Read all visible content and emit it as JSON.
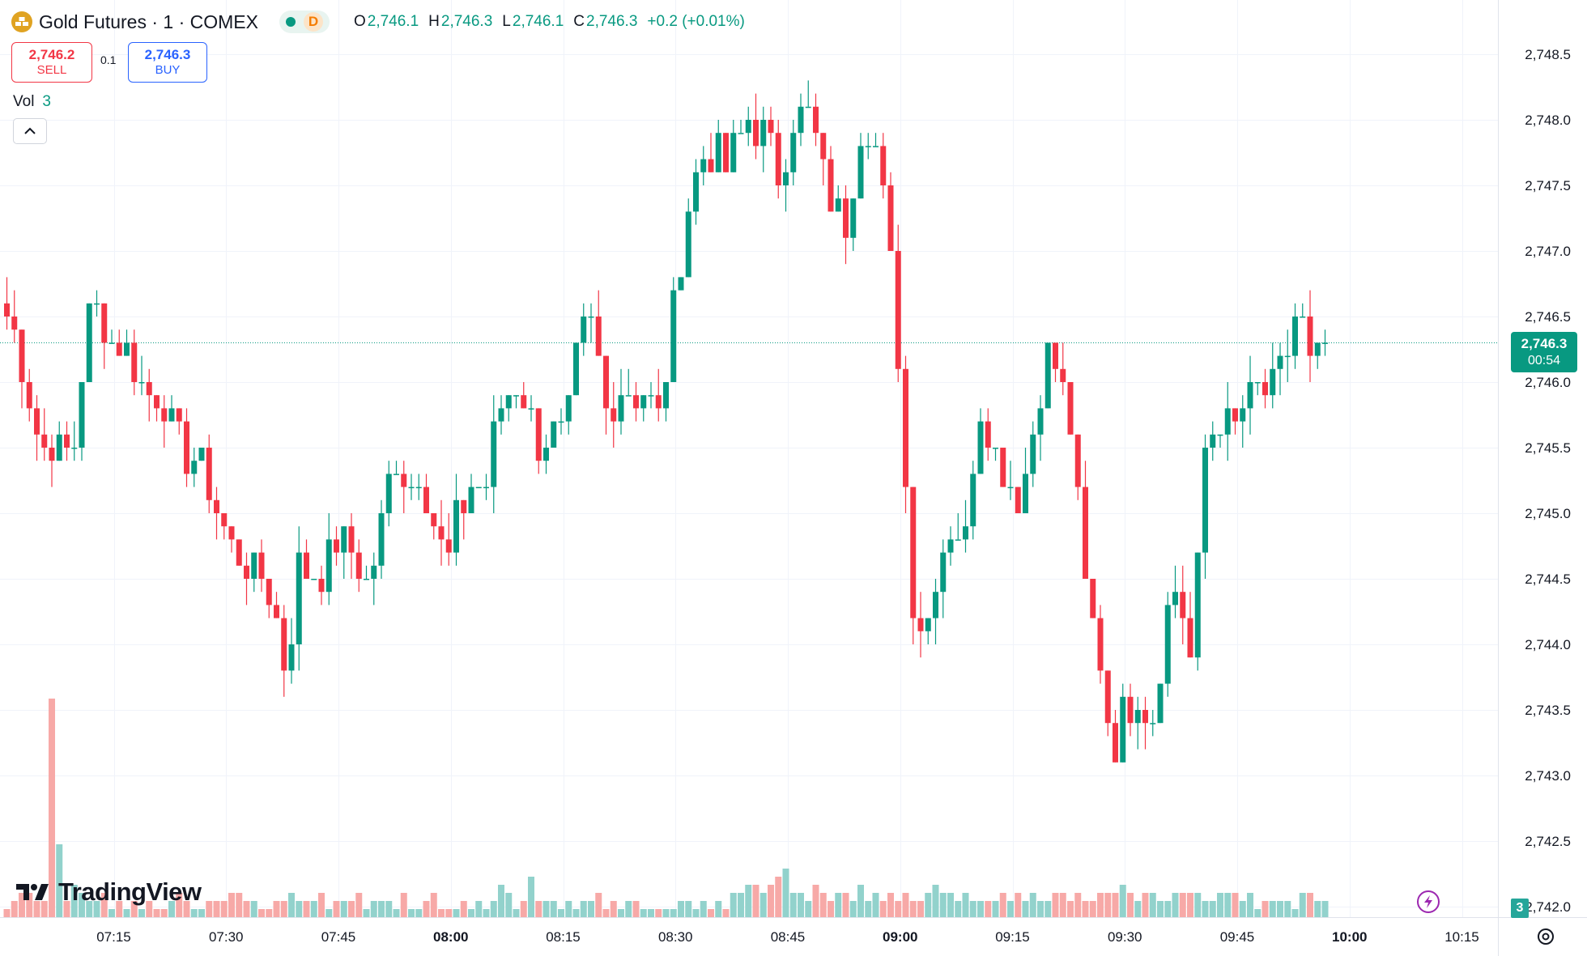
{
  "header": {
    "symbol_title": "Gold Futures · 1 · COMEX",
    "status_letter": "D",
    "ohlc": [
      {
        "label": "O",
        "value": "2,746.1"
      },
      {
        "label": "H",
        "value": "2,746.3"
      },
      {
        "label": "L",
        "value": "2,746.1"
      },
      {
        "label": "C",
        "value": "2,746.3"
      }
    ],
    "change": "+0.2 (+0.01%)"
  },
  "trade": {
    "sell_price": "2,746.2",
    "sell_label": "SELL",
    "spread": "0.1",
    "buy_price": "2,746.3",
    "buy_label": "BUY"
  },
  "volume_legend": {
    "label": "Vol",
    "value": "3"
  },
  "logo_text": "TradingView",
  "last_price": {
    "value": "2,746.3",
    "countdown": "00:54"
  },
  "last_volume": "3",
  "colors": {
    "up": "#089981",
    "down": "#f23645",
    "vol_up": "#92d2cc",
    "vol_down": "#f7a9a7"
  },
  "chart_data": {
    "type": "candlestick",
    "title": "Gold Futures · 1 · COMEX",
    "interval_minutes": 1,
    "y_ticks": [
      2742.0,
      2742.5,
      2743.0,
      2743.5,
      2744.0,
      2744.5,
      2745.0,
      2745.5,
      2746.0,
      2746.5,
      2747.0,
      2747.5,
      2748.0,
      2748.5
    ],
    "ylim": [
      2741.95,
      2748.6
    ],
    "x_ticks": [
      {
        "label": "07:15",
        "minute": 15
      },
      {
        "label": "07:30",
        "minute": 30
      },
      {
        "label": "07:45",
        "minute": 45
      },
      {
        "label": "08:00",
        "minute": 60,
        "bold": true
      },
      {
        "label": "08:15",
        "minute": 75
      },
      {
        "label": "08:30",
        "minute": 90
      },
      {
        "label": "08:45",
        "minute": 105
      },
      {
        "label": "09:00",
        "minute": 120,
        "bold": true
      },
      {
        "label": "09:15",
        "minute": 135
      },
      {
        "label": "09:30",
        "minute": 150
      },
      {
        "label": "09:45",
        "minute": 165
      },
      {
        "label": "10:00",
        "minute": 180,
        "bold": true
      },
      {
        "label": "10:15",
        "minute": 195
      }
    ],
    "anchor_prices": [
      2746.5,
      2746.2,
      2745.7,
      2745.5,
      2745.5,
      2745.5,
      2746.5,
      2746.5,
      2746.3,
      2746.2,
      2746.0,
      2745.9,
      2745.8,
      2745.5,
      2745.4,
      2745.3,
      2745.0,
      2744.7,
      2744.6,
      2744.5,
      2744.3,
      2743.8,
      2744.7,
      2744.5,
      2744.6,
      2744.8,
      2744.7,
      2744.5,
      2744.8,
      2745.5,
      2745.2,
      2745.3,
      2745.0,
      2744.6,
      2745.0,
      2745.2,
      2745.2,
      2745.8,
      2746.0,
      2745.9,
      2745.5,
      2745.6,
      2745.6,
      2746.3,
      2746.4,
      2745.8,
      2746.0,
      2745.9,
      2745.9,
      2745.7,
      2746.5,
      2747.3,
      2747.7,
      2747.8,
      2747.6,
      2747.9,
      2748.0,
      2747.9,
      2747.6,
      2748.0,
      2748.1,
      2747.7,
      2747.3,
      2747.2,
      2747.9,
      2748.0,
      2747.3,
      2746.1,
      2744.4,
      2744.1,
      2744.7,
      2744.9,
      2744.8,
      2745.9,
      2745.5,
      2745.3,
      2745.1,
      2745.6,
      2746.2,
      2746.1,
      2745.6,
      2744.4,
      2744.0,
      2743.2,
      2743.5,
      2743.7,
      2743.4,
      2744.2,
      2744.5,
      2743.8,
      2745.5,
      2745.7,
      2745.6,
      2745.8,
      2745.9,
      2745.9,
      2746.2,
      2746.6,
      2746.0,
      2746.3
    ],
    "volumes": [
      1,
      2,
      3,
      3,
      2,
      2,
      27,
      9,
      2,
      4,
      3,
      2,
      2,
      3,
      1,
      2,
      1,
      2,
      1,
      2,
      1,
      1,
      2,
      3,
      2,
      1,
      1,
      2,
      2,
      2,
      3,
      3,
      2,
      2,
      1,
      1,
      2,
      2,
      3,
      2,
      2,
      2,
      3,
      1,
      2,
      2,
      2,
      3,
      1,
      2,
      2,
      2,
      1,
      3,
      1,
      1,
      2,
      3,
      1,
      1,
      1,
      2,
      1,
      2,
      1,
      2,
      4,
      3,
      1,
      2,
      5,
      2,
      2,
      2,
      1,
      2,
      1,
      2,
      2,
      3,
      1,
      2,
      1,
      2,
      2,
      1,
      1,
      1,
      1,
      1,
      2,
      2,
      1,
      2,
      1,
      2,
      1,
      3,
      3,
      4,
      4,
      3,
      4,
      5,
      6,
      3,
      3,
      2,
      4,
      3,
      2,
      3,
      3,
      2,
      4,
      2,
      3,
      2,
      3,
      2,
      3,
      2,
      2,
      3,
      4,
      3,
      3,
      2,
      3,
      2,
      2,
      2,
      2,
      3,
      2,
      3,
      2,
      3,
      2,
      2,
      3,
      3,
      2,
      3,
      2,
      2,
      3,
      3,
      3,
      4,
      3,
      2,
      3,
      3,
      2,
      2,
      3,
      3,
      3,
      3,
      2,
      2,
      3,
      3,
      3,
      2,
      3,
      1,
      2,
      2,
      2,
      2,
      1,
      3,
      3,
      2,
      2,
      3,
      2,
      1,
      2,
      3,
      3,
      3
    ]
  }
}
